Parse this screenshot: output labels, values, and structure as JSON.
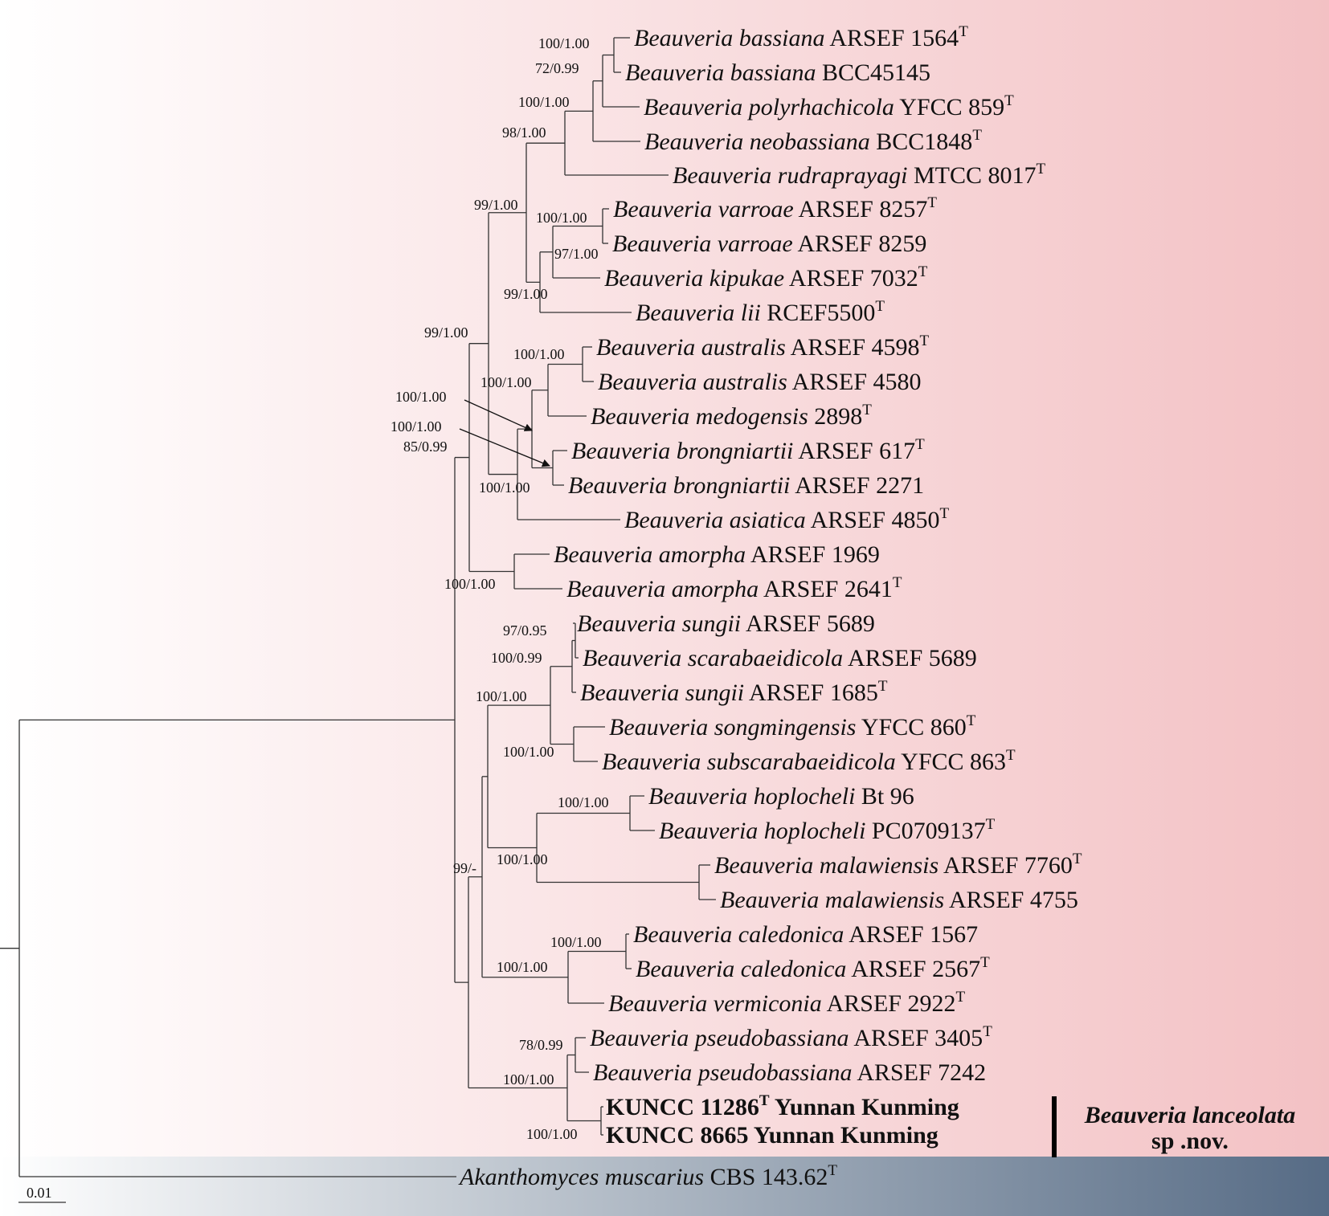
{
  "colors": {
    "clade_band_end": "#f3c1c4",
    "outgroup_band_end": "#566b85",
    "branch": "#333333"
  },
  "taxa": [
    {
      "genus": "Beauveria",
      "epithet": "bassiana",
      "strain": "ARSEF 1564",
      "type": "T"
    },
    {
      "genus": "Beauveria",
      "epithet": "bassiana",
      "strain": "BCC45145",
      "type": ""
    },
    {
      "genus": "Beauveria",
      "epithet": "polyrhachicola",
      "strain": "YFCC 859",
      "type": "T"
    },
    {
      "genus": "Beauveria",
      "epithet": "neobassiana",
      "strain": "BCC1848",
      "type": "T"
    },
    {
      "genus": "Beauveria",
      "epithet": "rudraprayagi",
      "strain": "MTCC 8017",
      "type": "T"
    },
    {
      "genus": "Beauveria",
      "epithet": "varroae",
      "strain": "ARSEF 8257",
      "type": "T"
    },
    {
      "genus": "Beauveria",
      "epithet": "varroae",
      "strain": "ARSEF 8259",
      "type": ""
    },
    {
      "genus": "Beauveria",
      "epithet": "kipukae",
      "strain": "ARSEF 7032",
      "type": "T"
    },
    {
      "genus": "Beauveria",
      "epithet": "lii",
      "strain": "RCEF5500",
      "type": "T"
    },
    {
      "genus": "Beauveria",
      "epithet": "australis",
      "strain": "ARSEF 4598",
      "type": "T"
    },
    {
      "genus": "Beauveria",
      "epithet": "australis",
      "strain": "ARSEF 4580",
      "type": ""
    },
    {
      "genus": "Beauveria",
      "epithet": "medogensis",
      "strain": "2898",
      "type": "T"
    },
    {
      "genus": "Beauveria",
      "epithet": "brongniartii",
      "strain": "ARSEF 617",
      "type": "T"
    },
    {
      "genus": "Beauveria",
      "epithet": "brongniartii",
      "strain": "ARSEF 2271",
      "type": ""
    },
    {
      "genus": "Beauveria",
      "epithet": "asiatica",
      "strain": "ARSEF 4850",
      "type": "T"
    },
    {
      "genus": "Beauveria",
      "epithet": "amorpha",
      "strain": "ARSEF 1969",
      "type": ""
    },
    {
      "genus": "Beauveria",
      "epithet": "amorpha",
      "strain": "ARSEF 2641",
      "type": "T"
    },
    {
      "genus": "Beauveria",
      "epithet": "sungii",
      "strain": "ARSEF 5689",
      "type": ""
    },
    {
      "genus": "Beauveria",
      "epithet": "scarabaeidicola",
      "strain": "ARSEF 5689",
      "type": ""
    },
    {
      "genus": "Beauveria",
      "epithet": "sungii",
      "strain": "ARSEF 1685",
      "type": "T"
    },
    {
      "genus": "Beauveria",
      "epithet": "songmingensis",
      "strain": "YFCC 860",
      "type": "T"
    },
    {
      "genus": "Beauveria",
      "epithet": "subscarabaeidicola",
      "strain": "YFCC 863",
      "type": "T"
    },
    {
      "genus": "Beauveria",
      "epithet": "hoplocheli",
      "strain": "Bt 96",
      "type": ""
    },
    {
      "genus": "Beauveria",
      "epithet": "hoplocheli",
      "strain": "PC0709137",
      "type": "T"
    },
    {
      "genus": "Beauveria",
      "epithet": "malawiensis",
      "strain": "ARSEF 7760",
      "type": "T"
    },
    {
      "genus": "Beauveria",
      "epithet": "malawiensis",
      "strain": "ARSEF 4755",
      "type": ""
    },
    {
      "genus": "Beauveria",
      "epithet": "caledonica",
      "strain": "ARSEF 1567",
      "type": ""
    },
    {
      "genus": "Beauveria",
      "epithet": "caledonica",
      "strain": "ARSEF 2567",
      "type": "T"
    },
    {
      "genus": "Beauveria",
      "epithet": "vermiconia",
      "strain": "ARSEF 2922",
      "type": "T"
    },
    {
      "genus": "Beauveria",
      "epithet": "pseudobassiana",
      "strain": "ARSEF 3405",
      "type": "T"
    },
    {
      "genus": "Beauveria",
      "epithet": "pseudobassiana",
      "strain": "ARSEF 7242",
      "type": ""
    }
  ],
  "new_isolates": [
    {
      "strain": "KUNCC 11286",
      "type": "T",
      "locality": "Yunnan Kunming"
    },
    {
      "strain": "KUNCC 8665",
      "type": "",
      "locality": "Yunnan Kunming"
    }
  ],
  "new_species": {
    "genus": "Beauveria",
    "epithet": "lanceolata",
    "status": "sp .nov."
  },
  "outgroup": {
    "genus": "Akanthomyces",
    "epithet": "muscarius",
    "strain": "CBS 143.62",
    "type": "T"
  },
  "support_values": [
    "100/1.00",
    "72/0.99",
    "100/1.00",
    "98/1.00",
    "99/1.00",
    "100/1.00",
    "97/1.00",
    "99/1.00",
    "99/1.00",
    "100/1.00",
    "100/1.00",
    "100/1.00",
    "100/1.00",
    "85/0.99",
    "100/1.00",
    "100/1.00",
    "97/0.95",
    "100/0.99",
    "100/1.00",
    "100/1.00",
    "100/1.00",
    "100/1.00",
    "99/-",
    "100/1.00",
    "100/1.00",
    "78/0.99",
    "100/1.00",
    "100/1.00"
  ],
  "scale_bar": {
    "label": "0.01"
  }
}
